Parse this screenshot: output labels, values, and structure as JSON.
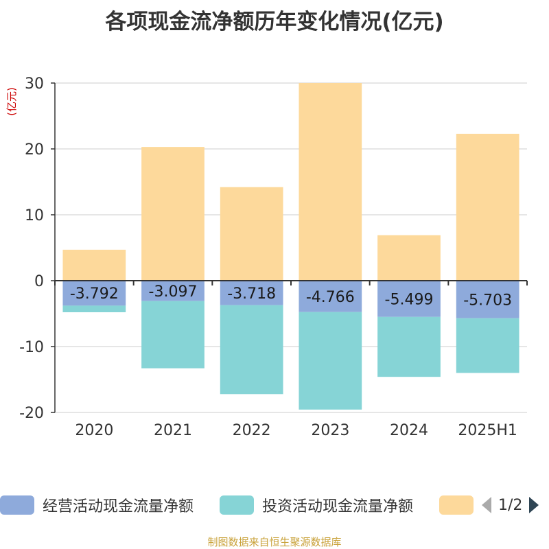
{
  "title": "各项现金流净额历年变化情况(亿元)",
  "footer": "制图数据来自恒生聚源数据库",
  "legend_page": "1/2",
  "chart_data": {
    "type": "bar",
    "stacked": true,
    "categories": [
      "2020",
      "2021",
      "2022",
      "2023",
      "2024",
      "2025H1"
    ],
    "ylabel": "(亿元)",
    "ylim": [
      -20,
      30
    ],
    "yticks": [
      -20,
      -10,
      0,
      10,
      20,
      30
    ],
    "grid": true,
    "legend_placement": "bottom",
    "series": [
      {
        "name": "经营活动现金流量净额",
        "color": "#8eaadb",
        "values": [
          -3.792,
          -3.097,
          -3.718,
          -4.766,
          -5.499,
          -5.703
        ],
        "labels": [
          "-3.792",
          "-3.097",
          "-3.718",
          "-4.766",
          "-5.499",
          "-5.703"
        ]
      },
      {
        "name": "投资活动现金流量净额",
        "color": "#86d4d6",
        "values": [
          -1.0,
          -10.2,
          -13.5,
          -14.8,
          -9.1,
          -8.3
        ]
      },
      {
        "name": "",
        "color": "#fdd99b",
        "values": [
          4.7,
          20.3,
          14.2,
          30.0,
          6.9,
          22.3
        ]
      }
    ]
  },
  "colors": {
    "ylabel": "#cc0000",
    "axis": "#333333",
    "grid": "#cccccc",
    "pager_active": "#2f4554",
    "pager_inactive": "#aaaaaa"
  }
}
